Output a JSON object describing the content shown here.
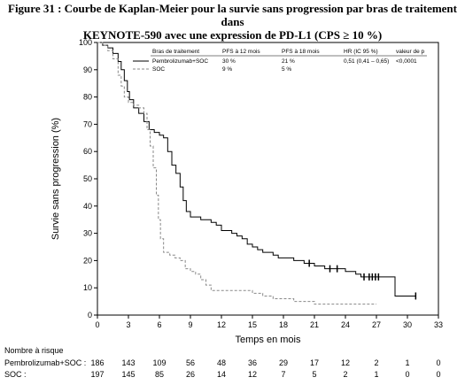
{
  "title_line1": "Figure 31 : Courbe de Kaplan-Meier pour la survie sans progression par bras de traitement dans",
  "title_line2": "KEYNOTE-590 avec une expression de PD-L1 (CPS ≥ 10 %)",
  "chart_data": {
    "type": "line",
    "xlabel": "Temps en mois",
    "ylabel": "Survie sans progression (%)",
    "xlim": [
      0,
      33
    ],
    "ylim": [
      0,
      100
    ],
    "xticks": [
      0,
      3,
      6,
      9,
      12,
      15,
      18,
      21,
      24,
      27,
      30,
      33
    ],
    "yticks": [
      0,
      10,
      20,
      30,
      40,
      50,
      60,
      70,
      80,
      90,
      100
    ],
    "legend": {
      "headers": [
        "Bras de traitement",
        "PFS à 12 mois",
        "PFS à 18 mois",
        "HR (IC 95 %)",
        "valeur de p"
      ],
      "rows": [
        [
          "Pembrolizumab+SOC",
          "30 %",
          "21 %",
          "0,51 (0,41 – 0,65)",
          "<0,0001"
        ],
        [
          "SOC",
          "9 %",
          "5 %",
          "",
          ""
        ]
      ]
    },
    "series": [
      {
        "name": "Pembrolizumab+SOC",
        "color": "#000000",
        "style": "solid",
        "points": [
          [
            0,
            100
          ],
          [
            0.5,
            99
          ],
          [
            1,
            98
          ],
          [
            1.5,
            96
          ],
          [
            2,
            93
          ],
          [
            2.3,
            90
          ],
          [
            2.6,
            86
          ],
          [
            2.9,
            82
          ],
          [
            3.1,
            79
          ],
          [
            3.5,
            76
          ],
          [
            4,
            74
          ],
          [
            4.5,
            71
          ],
          [
            5,
            68
          ],
          [
            5.5,
            67
          ],
          [
            6,
            66
          ],
          [
            6.4,
            65
          ],
          [
            6.8,
            60
          ],
          [
            7.2,
            55
          ],
          [
            7.6,
            52
          ],
          [
            8,
            47
          ],
          [
            8.3,
            42
          ],
          [
            8.6,
            38
          ],
          [
            9,
            36
          ],
          [
            9.5,
            36
          ],
          [
            10,
            35
          ],
          [
            10.5,
            35
          ],
          [
            11,
            34
          ],
          [
            11.5,
            33
          ],
          [
            12,
            31
          ],
          [
            12.5,
            31
          ],
          [
            13,
            30
          ],
          [
            13.5,
            29
          ],
          [
            14,
            28
          ],
          [
            14.5,
            26
          ],
          [
            15,
            25
          ],
          [
            15.5,
            24
          ],
          [
            16,
            23
          ],
          [
            16.5,
            23
          ],
          [
            17,
            22
          ],
          [
            17.5,
            21
          ],
          [
            18,
            21
          ],
          [
            19,
            20
          ],
          [
            20,
            19
          ],
          [
            21,
            18
          ],
          [
            21.5,
            18
          ],
          [
            22,
            17
          ],
          [
            23,
            17
          ],
          [
            24,
            16
          ],
          [
            25,
            15
          ],
          [
            25.5,
            14
          ],
          [
            26,
            14
          ],
          [
            27,
            14
          ],
          [
            28,
            14
          ],
          [
            28.8,
            14
          ],
          [
            28.8,
            7
          ],
          [
            30,
            7
          ],
          [
            30.8,
            7
          ]
        ]
      },
      {
        "name": "SOC",
        "color": "#888888",
        "style": "dashed",
        "points": [
          [
            0,
            100
          ],
          [
            0.5,
            99
          ],
          [
            1,
            97
          ],
          [
            1.5,
            94
          ],
          [
            2,
            88
          ],
          [
            2.3,
            84
          ],
          [
            2.6,
            80
          ],
          [
            3,
            78
          ],
          [
            3.5,
            77
          ],
          [
            4,
            76
          ],
          [
            4.5,
            74
          ],
          [
            4.8,
            68
          ],
          [
            5.1,
            62
          ],
          [
            5.4,
            54
          ],
          [
            5.7,
            44
          ],
          [
            5.9,
            35
          ],
          [
            6.1,
            28
          ],
          [
            6.4,
            23
          ],
          [
            7,
            22
          ],
          [
            7.5,
            21
          ],
          [
            8,
            20
          ],
          [
            8.5,
            17
          ],
          [
            9,
            16
          ],
          [
            9.5,
            15
          ],
          [
            10,
            13
          ],
          [
            10.5,
            11
          ],
          [
            11,
            9
          ],
          [
            12,
            9
          ],
          [
            13,
            9
          ],
          [
            14,
            9
          ],
          [
            15,
            8
          ],
          [
            16,
            7
          ],
          [
            17,
            6
          ],
          [
            18,
            6
          ],
          [
            19,
            5
          ],
          [
            20,
            5
          ],
          [
            21,
            4
          ],
          [
            23,
            4
          ],
          [
            25,
            4
          ],
          [
            27,
            4
          ]
        ]
      }
    ],
    "risk_table": {
      "title": "Nombre à risque",
      "timepoints": [
        0,
        3,
        6,
        9,
        12,
        15,
        18,
        21,
        24,
        27,
        30,
        33
      ],
      "rows": [
        {
          "label": "Pembrolizumab+SOC :",
          "values": [
            "186",
            "143",
            "109",
            "56",
            "48",
            "36",
            "29",
            "17",
            "12",
            "2",
            "1",
            "0"
          ]
        },
        {
          "label": "SOC :",
          "values": [
            "197",
            "145",
            "85",
            "26",
            "14",
            "12",
            "7",
            "5",
            "2",
            "1",
            "0",
            "0"
          ]
        }
      ]
    }
  }
}
